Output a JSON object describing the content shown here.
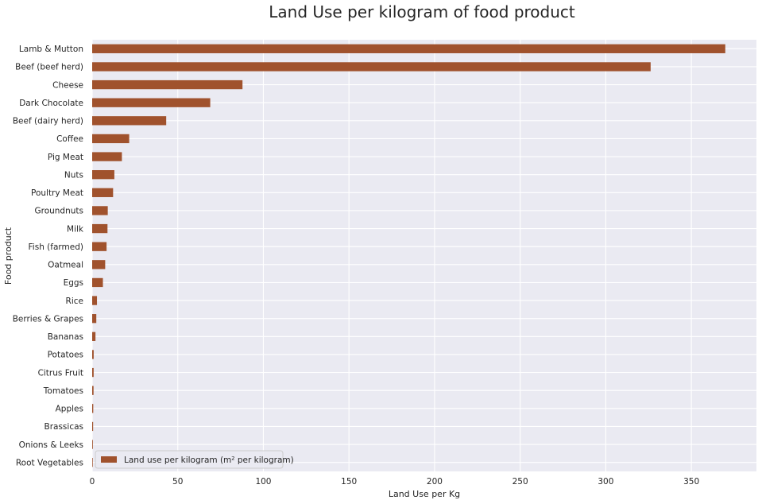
{
  "chart_data": {
    "type": "bar",
    "orientation": "horizontal",
    "title": "Land Use per kilogram of food product",
    "xlabel": "Land Use per Kg",
    "ylabel": "Food product",
    "xlim": [
      0,
      388
    ],
    "xticks": [
      0,
      50,
      100,
      150,
      200,
      250,
      300,
      350
    ],
    "grid": true,
    "legend_position": "lower-left",
    "categories": [
      "Lamb & Mutton",
      "Beef (beef herd)",
      "Cheese",
      "Dark Chocolate",
      "Beef (dairy herd)",
      "Coffee",
      "Pig Meat",
      "Nuts",
      "Poultry Meat",
      "Groundnuts",
      "Milk",
      "Fish (farmed)",
      "Oatmeal",
      "Eggs",
      "Rice",
      "Berries & Grapes",
      "Bananas",
      "Potatoes",
      "Citrus Fruit",
      "Tomatoes",
      "Apples",
      "Brassicas",
      "Onions & Leeks",
      "Root Vegetables"
    ],
    "series": [
      {
        "name": "Land use per kilogram (m² per kilogram)",
        "color": "#a0522d",
        "values": [
          369.8,
          326.2,
          87.8,
          68.96,
          43.24,
          21.62,
          17.36,
          12.96,
          12.22,
          9.11,
          8.95,
          8.41,
          7.6,
          6.27,
          2.8,
          2.41,
          1.93,
          0.88,
          0.86,
          0.8,
          0.63,
          0.55,
          0.39,
          0.33
        ]
      }
    ]
  },
  "colors": {
    "plot_background": "#eaeaf2",
    "grid": "#ffffff",
    "bar": "#a0522d"
  }
}
